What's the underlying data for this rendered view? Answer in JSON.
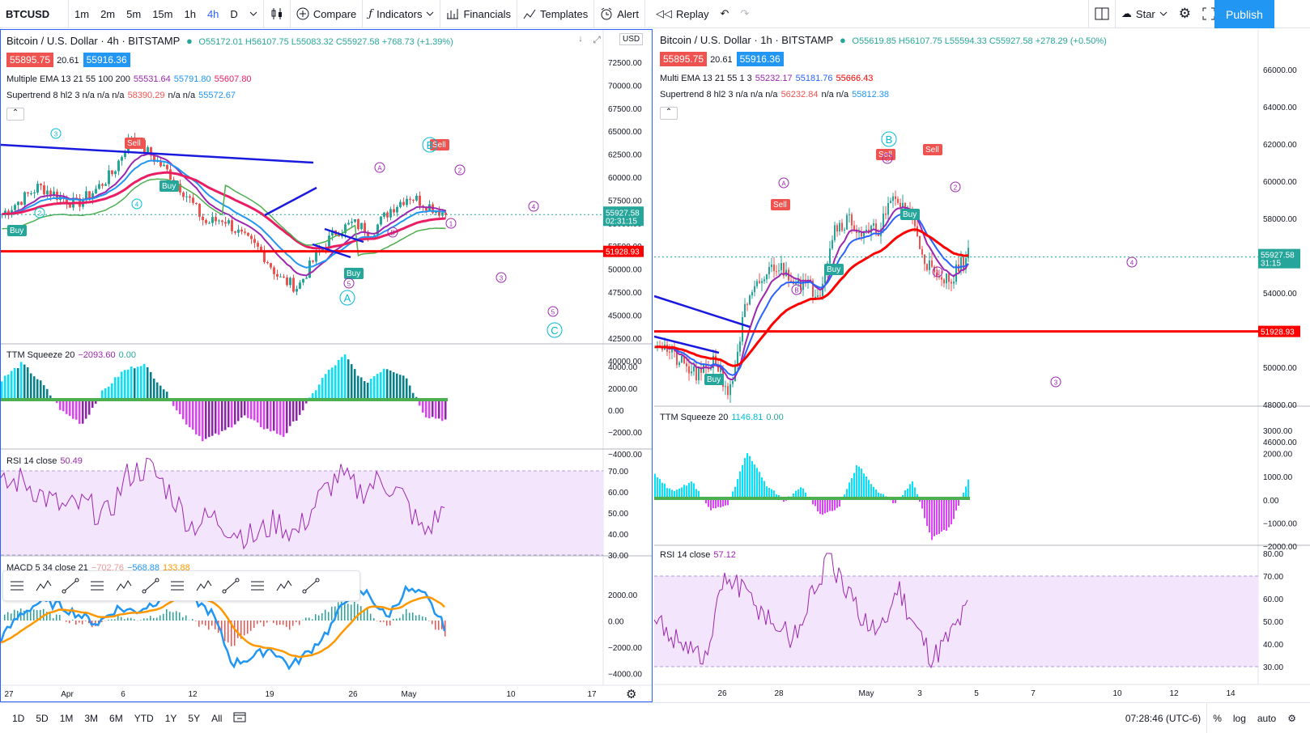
{
  "toolbar": {
    "symbol": "BTCUSD",
    "intervals": [
      "1m",
      "2m",
      "5m",
      "15m",
      "1h",
      "4h",
      "D"
    ],
    "active_interval": "4h",
    "compare": "Compare",
    "indicators": "Indicators",
    "financials": "Financials",
    "templates": "Templates",
    "alert": "Alert",
    "replay": "Replay",
    "star": "Star",
    "publish": "Publish"
  },
  "left": {
    "title": "Bitcoin / U.S. Dollar · 4h · BITSTAMP",
    "ohlc": "O55172.01 H56107.75 L55083.32 C55927.58 +768.73 (+1.39%)",
    "bid": "55895.75",
    "spread": "20.61",
    "ask": "55916.36",
    "ema_label": "Multiple EMA 13 21 55 100 200",
    "ema_vals": [
      "55531.64",
      "55791.80",
      "55607.80"
    ],
    "st_label": "Supertrend 8 hl2 3  n/a n/a n/a",
    "st_val1": "58390.29",
    "st_mid": "n/a n/a",
    "st_val2": "55572.67",
    "currency": "USD",
    "price_ticks": [
      "72500.00",
      "70000.00",
      "67500.00",
      "65000.00",
      "62500.00",
      "60000.00",
      "57500.00",
      "55000.00",
      "52500.00",
      "50000.00",
      "47500.00",
      "45000.00",
      "42500.00",
      "40000.00"
    ],
    "last_price": "55927.58",
    "countdown": "02:31:15",
    "line_price": "51928.93",
    "ttm_label": "TTM Squeeze 20",
    "ttm_v1": "−2093.60",
    "ttm_v2": "0.00",
    "ttm_ticks": [
      "4000.00",
      "2000.00",
      "0.00",
      "−2000.00",
      "−4000.00"
    ],
    "rsi_label": "RSI 14 close",
    "rsi_val": "50.49",
    "rsi_ticks": [
      "70.00",
      "60.00",
      "50.00",
      "40.00",
      "30.00"
    ],
    "macd_label": "MACD 5 34 close 21",
    "macd_v1": "−702.76",
    "macd_v2": "−568.88",
    "macd_v3": "133.88",
    "macd_ticks": [
      "2000.00",
      "0.00",
      "−2000.00",
      "−4000.00"
    ],
    "time_ticks": [
      "27",
      "Apr",
      "6",
      "12",
      "19",
      "26",
      "May",
      "10",
      "17"
    ],
    "labels": {
      "sell": "Sell",
      "buy": "Buy"
    }
  },
  "right": {
    "title": "Bitcoin / U.S. Dollar · 1h · BITSTAMP",
    "ohlc": "O55619.85 H56107.75 L55594.33 C55927.58 +278.29 (+0.50%)",
    "bid": "55895.75",
    "spread": "20.61",
    "ask": "55916.36",
    "ema_label": "Multi EMA 13 21 55 1 3",
    "ema_vals": [
      "55232.17",
      "55181.76",
      "55666.43"
    ],
    "st_label": "Supertrend 8 hl2 3  n/a n/a n/a",
    "st_val1": "56232.84",
    "st_mid": "n/a n/a",
    "st_val2": "55812.38",
    "price_ticks": [
      "66000.00",
      "64000.00",
      "62000.00",
      "60000.00",
      "58000.00",
      "56000.00",
      "54000.00",
      "52000.00",
      "50000.00",
      "48000.00",
      "46000.00"
    ],
    "last_price": "55927.58",
    "countdown": "31:15",
    "line_price": "51928.93",
    "ttm_label": "TTM Squeeze 20",
    "ttm_v1": "1146.81",
    "ttm_v2": "0.00",
    "ttm_ticks": [
      "3000.00",
      "2000.00",
      "1000.00",
      "0.00",
      "−1000.00",
      "−2000.00"
    ],
    "rsi_label": "RSI 14 close",
    "rsi_val": "57.12",
    "rsi_ticks": [
      "80.00",
      "70.00",
      "60.00",
      "50.00",
      "40.00",
      "30.00"
    ],
    "time_ticks": [
      "26",
      "28",
      "May",
      "3",
      "5",
      "7",
      "10",
      "12",
      "14"
    ]
  },
  "bottom": {
    "ranges": [
      "1D",
      "5D",
      "1M",
      "3M",
      "6M",
      "YTD",
      "1Y",
      "5Y",
      "All"
    ],
    "time": "07:28:46 (UTC-6)",
    "percent": "%",
    "log": "log",
    "auto": "auto"
  },
  "colors": {
    "up": "#26a69a",
    "down": "#ef5350",
    "red": "#f00",
    "blue": "#2962ff",
    "ema_red": "#e91e63",
    "ema_blue": "#2196f3",
    "orange": "#ff9800",
    "purple": "#9c27b0",
    "cyan": "#00e5ff"
  }
}
